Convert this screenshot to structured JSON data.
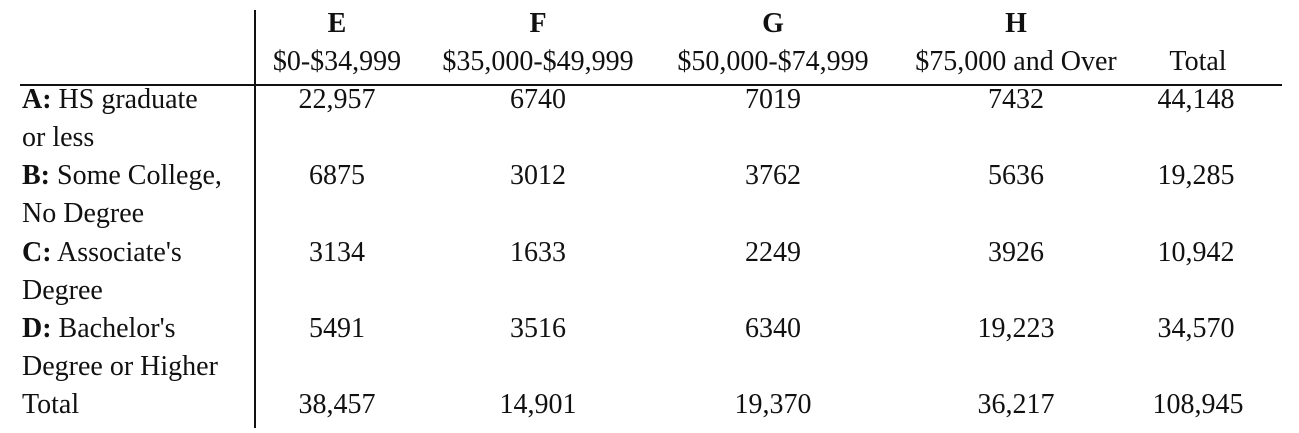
{
  "table": {
    "column_letters": [
      "E",
      "F",
      "G",
      "H"
    ],
    "column_ranges": [
      "$0-$34,999",
      "$35,000-$49,999",
      "$50,000-$74,999",
      "$75,000 and Over"
    ],
    "total_header": "Total",
    "rows": [
      {
        "key": "A:",
        "label1": " HS graduate",
        "label2": "or less",
        "values": [
          "22,957",
          "6740",
          "7019",
          "7432"
        ],
        "total": "44,148"
      },
      {
        "key": "B:",
        "label1": " Some College,",
        "label2": "No Degree",
        "values": [
          "6875",
          "3012",
          "3762",
          "5636"
        ],
        "total": "19,285"
      },
      {
        "key": "C:",
        "label1": " Associate's",
        "label2": "Degree",
        "values": [
          "3134",
          "1633",
          "2249",
          "3926"
        ],
        "total": "10,942"
      },
      {
        "key": "D:",
        "label1": " Bachelor's",
        "label2": "Degree or Higher",
        "values": [
          "5491",
          "3516",
          "6340",
          "19,223"
        ],
        "total": "34,570"
      }
    ],
    "total_row": {
      "label": "Total",
      "values": [
        "38,457",
        "14,901",
        "19,370",
        "36,217"
      ],
      "total": "108,945"
    }
  }
}
